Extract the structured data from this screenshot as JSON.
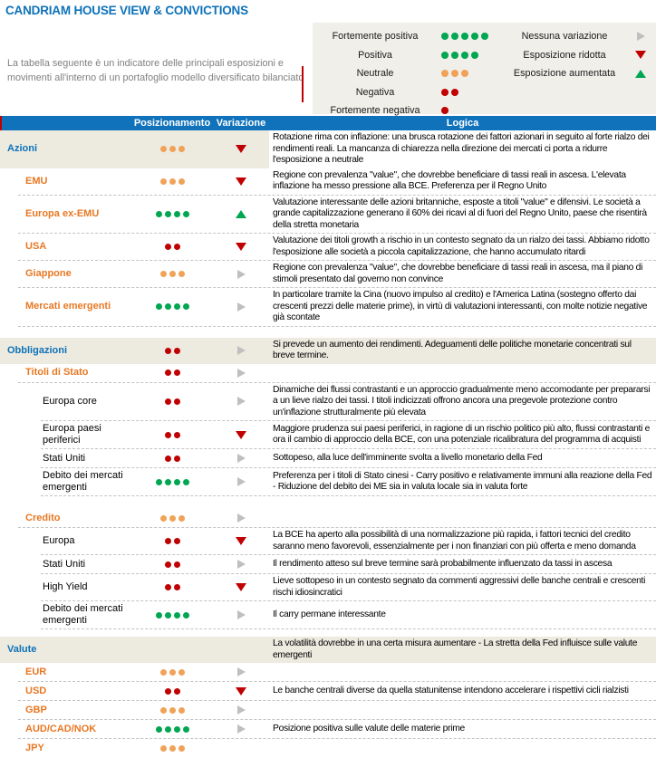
{
  "colors": {
    "accent_blue": "#0D72B9",
    "header_blue": "#1072BA",
    "orange_label": "#E87722",
    "green": "#00A651",
    "orange": "#F0A258",
    "red": "#C00000",
    "gray_triangle": "#BFBFBF",
    "beige": "#EDEAE0",
    "legend_bg": "#F1EFEA"
  },
  "title": "CANDRIAM HOUSE VIEW & CONVICTIONS",
  "intro": "La tabella seguente è un indicatore delle principali esposizioni e movimenti all'interno di un portafoglio modello diversificato bilanciato",
  "legend": {
    "positioning": [
      {
        "label": "Fortemente positiva",
        "dots": 5,
        "dot_color": "green"
      },
      {
        "label": "Positiva",
        "dots": 4,
        "dot_color": "green"
      },
      {
        "label": "Neutrale",
        "dots": 3,
        "dot_color": "orange"
      },
      {
        "label": "Negativa",
        "dots": 2,
        "dot_color": "red"
      },
      {
        "label": "Fortemente negativa",
        "dots": 1,
        "dot_color": "red"
      }
    ],
    "variation": [
      {
        "label": "Nessuna variazione",
        "symbol": "right",
        "icon": "no-change-icon"
      },
      {
        "label": "Esposizione ridotta",
        "symbol": "down",
        "icon": "reduced-exposure-icon"
      },
      {
        "label": "Esposizione aumentata",
        "symbol": "up",
        "icon": "increased-exposure-icon"
      }
    ]
  },
  "table": {
    "columns": {
      "posizionamento": "Posizionamento",
      "variazione": "Variazione",
      "logica": "Logica"
    },
    "rows": [
      {
        "label": "Azioni",
        "level": 1,
        "dots": 3,
        "dot_color": "orange",
        "variation": "down",
        "logic": "Rotazione rima con inflazione: una brusca rotazione dei fattori azionari in seguito al forte rialzo dei rendimenti reali. La mancanza di chiarezza nella direzione dei mercati ci porta a ridurre l'esposizione a neutrale",
        "bg": "left",
        "sep": false,
        "gap_before": 0
      },
      {
        "label": "EMU",
        "level": 2,
        "dots": 3,
        "dot_color": "orange",
        "variation": "down",
        "logic": "Regione con prevalenza \"value\", che dovrebbe beneficiare di tassi reali in ascesa. L'elevata inflazione ha messo pressione alla BCE. Preferenza per il Regno Unito",
        "bg": "none",
        "sep": true,
        "gap_before": 0
      },
      {
        "label": "Europa ex-EMU",
        "level": 2,
        "dots": 4,
        "dot_color": "green",
        "variation": "up",
        "logic": "Valutazione interessante delle azioni britanniche, esposte a titoli \"value\" e difensivi. Le società a grande capitalizzazione generano il 60% dei ricavi al di fuori del Regno Unito, paese che risentirà della stretta monetaria",
        "bg": "none",
        "sep": true,
        "gap_before": 0
      },
      {
        "label": "USA",
        "level": 2,
        "dots": 2,
        "dot_color": "red",
        "variation": "down",
        "logic": "Valutazione dei titoli growth a rischio in un contesto segnato da un rialzo dei tassi. Abbiamo ridotto l'esposizione alle società a piccola capitalizzazione, che hanno accumulato ritardi",
        "bg": "none",
        "sep": true,
        "gap_before": 0
      },
      {
        "label": "Giappone",
        "level": 2,
        "dots": 3,
        "dot_color": "orange",
        "variation": "right",
        "logic": "Regione con prevalenza \"value\", che dovrebbe beneficiare di tassi reali in ascesa, ma il piano di stimoli presentato dal governo non convince",
        "bg": "none",
        "sep": true,
        "gap_before": 0
      },
      {
        "label": "Mercati emergenti",
        "level": 2,
        "dots": 4,
        "dot_color": "green",
        "variation": "right",
        "logic": "In particolare tramite la Cina (nuovo impulso al credito) e l'America Latina (sostegno offerto dai crescenti prezzi delle materie prime), in virtù di valutazioni interessanti, con molte notizie negative già scontate",
        "bg": "none",
        "sep": true,
        "gap_before": 0
      },
      {
        "label": "Obbligazioni",
        "level": 1,
        "dots": 2,
        "dot_color": "red",
        "variation": "right",
        "logic": "Si prevede un aumento dei rendimenti. Adeguamenti delle politiche monetarie concentrati sul breve termine.",
        "bg": "full",
        "sep": false,
        "gap_before": 12
      },
      {
        "label": "Titoli di Stato",
        "level": 2,
        "dots": 2,
        "dot_color": "red",
        "variation": "right",
        "logic": "",
        "bg": "none",
        "sep": true,
        "gap_before": 0
      },
      {
        "label": "Europa core",
        "level": 3,
        "dots": 2,
        "dot_color": "red",
        "variation": "right",
        "logic": "Dinamiche dei flussi contrastanti e un approccio gradualmente meno accomodante per prepararsi a un lieve rialzo dei tassi. I titoli indicizzati offrono ancora una pregevole protezione contro un'inflazione strutturalmente più elevata",
        "bg": "none",
        "sep": true,
        "gap_before": 0
      },
      {
        "label": "Europa paesi periferici",
        "level": 3,
        "dots": 2,
        "dot_color": "red",
        "variation": "down",
        "logic": "Maggiore prudenza sui paesi periferici, in ragione di un rischio politico più alto, flussi contrastanti e ora il cambio di approccio della BCE, con una potenziale ricalibratura del programma di acquisti",
        "bg": "none",
        "sep": true,
        "gap_before": 0
      },
      {
        "label": "Stati Uniti",
        "level": 3,
        "dots": 2,
        "dot_color": "red",
        "variation": "right",
        "logic": "Sottopeso, alla luce dell'imminente svolta a livello monetario della Fed",
        "bg": "none",
        "sep": true,
        "gap_before": 0
      },
      {
        "label": "Debito dei mercati emergenti",
        "level": 3,
        "dots": 4,
        "dot_color": "green",
        "variation": "right",
        "logic": "Preferenza per i titoli di Stato cinesi - Carry positivo e relativamente immuni alla reazione della Fed - Riduzione del debito dei ME sia in valuta locale sia in valuta forte",
        "bg": "none",
        "sep": true,
        "gap_before": 0
      },
      {
        "label": "Credito",
        "level": 2,
        "dots": 3,
        "dot_color": "orange",
        "variation": "right",
        "logic": "",
        "bg": "none",
        "sep": true,
        "gap_before": 14
      },
      {
        "label": "Europa",
        "level": 3,
        "dots": 2,
        "dot_color": "red",
        "variation": "down",
        "logic": "La BCE ha aperto alla possibilità di una normalizzazione più rapida, i fattori tecnici del credito saranno meno favorevoli, essenzialmente per i non finanziari con più offerta e meno domanda",
        "bg": "none",
        "sep": true,
        "gap_before": 0
      },
      {
        "label": "Stati Uniti",
        "level": 3,
        "dots": 2,
        "dot_color": "red",
        "variation": "right",
        "logic": "Il rendimento atteso sul breve termine sarà probabilmente influenzato da tassi in ascesa",
        "bg": "none",
        "sep": true,
        "gap_before": 0
      },
      {
        "label": "High Yield",
        "level": 3,
        "dots": 2,
        "dot_color": "red",
        "variation": "down",
        "logic": "Lieve sottopeso in un contesto segnato da commenti aggressivi delle banche centrali e crescenti rischi idiosincratici",
        "bg": "none",
        "sep": true,
        "gap_before": 0
      },
      {
        "label": "Debito dei mercati emergenti",
        "level": 3,
        "dots": 4,
        "dot_color": "green",
        "variation": "right",
        "logic": "Il carry permane interessante",
        "bg": "none",
        "sep": true,
        "gap_before": 0
      },
      {
        "label": "Valute",
        "level": 1,
        "dots": 0,
        "dot_color": "",
        "variation": "none",
        "logic": "La volatilità dovrebbe in una certa misura aumentare - La stretta della Fed influisce sulle valute emergenti",
        "bg": "full",
        "sep": false,
        "gap_before": 8
      },
      {
        "label": "EUR",
        "level": 2,
        "dots": 3,
        "dot_color": "orange",
        "variation": "right",
        "logic": "",
        "bg": "none",
        "sep": true,
        "gap_before": 0
      },
      {
        "label": "USD",
        "level": 2,
        "dots": 2,
        "dot_color": "red",
        "variation": "down",
        "logic": "Le banche centrali diverse da quella statunitense intendono accelerare i rispettivi cicli rialzisti",
        "bg": "none",
        "sep": true,
        "gap_before": 0
      },
      {
        "label": "GBP",
        "level": 2,
        "dots": 3,
        "dot_color": "orange",
        "variation": "right",
        "logic": "",
        "bg": "none",
        "sep": true,
        "gap_before": 0
      },
      {
        "label": "AUD/CAD/NOK",
        "level": 2,
        "dots": 4,
        "dot_color": "green",
        "variation": "right",
        "logic": "Posizione positiva sulle valute delle materie prime",
        "bg": "none",
        "sep": true,
        "gap_before": 0
      },
      {
        "label": "JPY",
        "level": 2,
        "dots": 3,
        "dot_color": "orange",
        "variation": "none",
        "logic": "",
        "bg": "none",
        "sep": false,
        "gap_before": 0
      }
    ]
  }
}
